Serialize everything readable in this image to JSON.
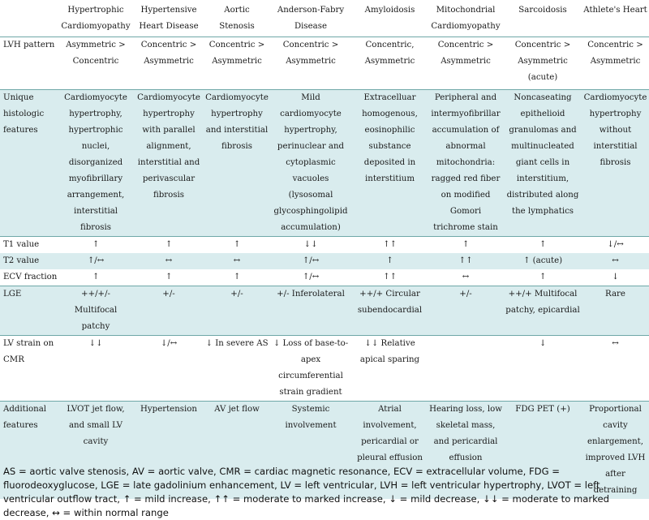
{
  "columns": [
    "",
    "Hypertrophic Cardiomyopathy",
    "Hypertensive Heart Disease",
    "Aortic Stenosis",
    "Anderson-Fabry Disease",
    "Amyloidosis",
    "Mitochondrial Cardiomyopathy",
    "Sarcoidosis",
    "Athlete's Heart"
  ],
  "rows": [
    {
      "label": "LVH pattern",
      "cells": [
        "Asymmetric > Concentric",
        "Concentric > Asymmetric",
        "Concentric > Asymmetric",
        "Concentric > Asymmetric",
        "Concentric, Asymmetric",
        "Concentric > Asymmetric",
        "Concentric > Asymmetric (acute)",
        "Concentric > Asymmetric"
      ]
    },
    {
      "label": "Unique histologic features",
      "cells": [
        "Cardiomyocyte hypertrophy, hypertrophic nuclei, disorganized myofibrillary arrangement, interstitial fibrosis",
        "Cardiomyocyte hypertrophy with parallel alignment, interstitial and perivascular fibrosis",
        "Cardiomyocyte hypertrophy and interstitial fibrosis",
        "Mild cardiomyocyte hypertrophy, perinuclear and cytoplasmic vacuoles (lysosomal glycosphingolipid accumulation)",
        "Extracelluar homogenous, eosinophilic substance deposited in interstitium",
        "Peripheral and intermyofibrillar accumulation of abnormal mitochondria: ragged red fiber on modified Gomori trichrome stain",
        "Noncaseating epithelioid granulomas and multinucleated giant cells in interstitium, distributed along the lymphatics",
        "Cardiomyocyte hypertrophy without interstitial fibrosis"
      ]
    },
    {
      "label": "T1 value",
      "cells": [
        "↑",
        "↑",
        "↑",
        "↓↓",
        "↑↑",
        "↑",
        "↑",
        "↓/↔"
      ]
    },
    {
      "label": "T2 value",
      "cells": [
        "↑/↔",
        "↔",
        "↔",
        "↑/↔",
        "↑",
        "↑↑",
        "↑ (acute)",
        "↔"
      ]
    },
    {
      "label": "ECV fraction",
      "cells": [
        "↑",
        "↑",
        "↑",
        "↑/↔",
        "↑↑",
        "↔",
        "↑",
        "↓"
      ]
    },
    {
      "label": "LGE",
      "cells": [
        "++/+/- Multifocal patchy",
        "+/-",
        "+/-",
        "+/- Inferolateral",
        "++/+ Circular subendocardial",
        "+/-",
        "++/+ Multifocal patchy, epicardial",
        "Rare"
      ]
    },
    {
      "label": "LV strain on CMR",
      "cells": [
        "↓↓",
        "↓/↔",
        "↓ In severe AS",
        "↓ Loss of base-to-apex circumferential strain gradient",
        "↓↓ Relative apical sparing",
        "",
        "↓",
        "↔"
      ]
    },
    {
      "label": "Additional features",
      "cells": [
        "LVOT jet flow, and small LV cavity",
        "Hypertension",
        "AV jet flow",
        "Systemic involvement",
        "Atrial involvement, pericardial or pleural effusion",
        "Hearing loss, low skeletal mass, and pericardial effusion",
        "FDG PET (+)",
        "Proportional cavity enlargement, improved LVH after detraining"
      ]
    }
  ],
  "footnote": "AS = aortic valve stenosis, AV = aortic valve, CMR = cardiac magnetic resonance, ECV = extracellular volume, FDG = fluorodeoxyglucose, LGE = late gadolinium enhancement, LV = left ventricular, LVH = left ventricular hypertrophy, LVOT = left ventricular outflow tract, ↑ = mild increase, ↑↑ = moderate to marked increase, ↓ = mild decrease, ↓↓ = moderate to marked decrease, ↔ = within normal range"
}
